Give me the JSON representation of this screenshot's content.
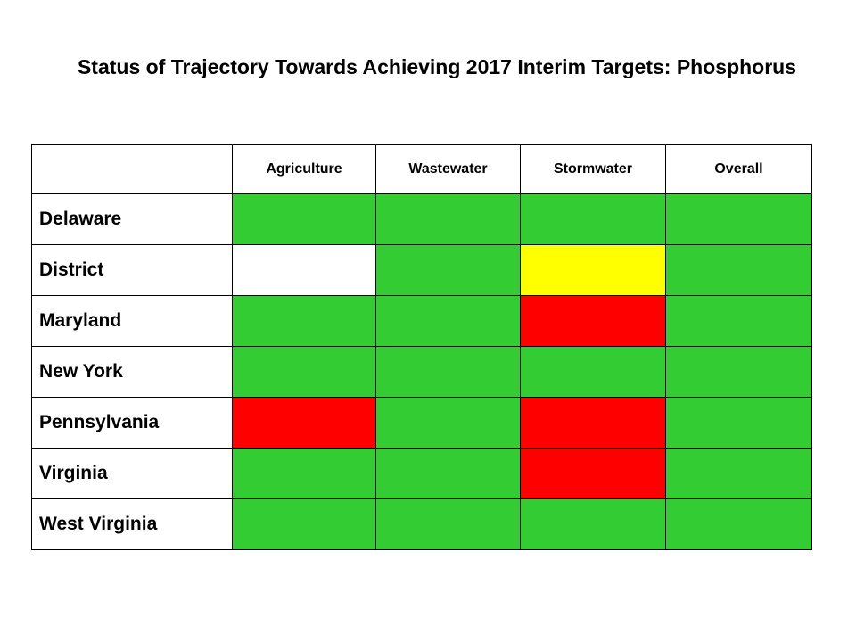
{
  "header": {
    "title": "Status of Trajectory Towards Achieving 2017 Interim Targets: Phosphorus"
  },
  "table": {
    "columns": [
      "Agriculture",
      "Wastewater",
      "Stormwater",
      "Overall"
    ],
    "rows": [
      {
        "label": "Delaware",
        "colors": [
          "#33cc33",
          "#33cc33",
          "#33cc33",
          "#33cc33"
        ]
      },
      {
        "label": "District",
        "colors": [
          "#ffffff",
          "#33cc33",
          "#ffff00",
          "#33cc33"
        ]
      },
      {
        "label": "Maryland",
        "colors": [
          "#33cc33",
          "#33cc33",
          "#ff0000",
          "#33cc33"
        ]
      },
      {
        "label": "New York",
        "colors": [
          "#33cc33",
          "#33cc33",
          "#33cc33",
          "#33cc33"
        ]
      },
      {
        "label": "Pennsylvania",
        "colors": [
          "#ff0000",
          "#33cc33",
          "#ff0000",
          "#33cc33"
        ]
      },
      {
        "label": "Virginia",
        "colors": [
          "#33cc33",
          "#33cc33",
          "#ff0000",
          "#33cc33"
        ]
      },
      {
        "label": "West Virginia",
        "colors": [
          "#33cc33",
          "#33cc33",
          "#33cc33",
          "#33cc33"
        ]
      }
    ]
  }
}
